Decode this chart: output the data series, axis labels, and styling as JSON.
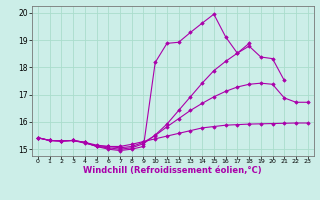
{
  "title": "",
  "xlabel": "Windchill (Refroidissement éolien,°C)",
  "ylabel": "",
  "background_color": "#cceee8",
  "grid_color": "#aaddcc",
  "line_color": "#aa00aa",
  "xlim": [
    -0.5,
    23.5
  ],
  "ylim": [
    14.75,
    20.25
  ],
  "yticks": [
    15,
    16,
    17,
    18,
    19,
    20
  ],
  "xticks": [
    0,
    1,
    2,
    3,
    4,
    5,
    6,
    7,
    8,
    9,
    10,
    11,
    12,
    13,
    14,
    15,
    16,
    17,
    18,
    19,
    20,
    21,
    22,
    23
  ],
  "series": [
    [
      15.42,
      15.32,
      15.3,
      15.32,
      15.22,
      15.12,
      15.1,
      15.1,
      15.18,
      15.28,
      15.38,
      15.48,
      15.58,
      15.68,
      15.78,
      15.83,
      15.88,
      15.9,
      15.92,
      15.93,
      15.94,
      15.95,
      15.96,
      15.96
    ],
    [
      15.42,
      15.32,
      15.3,
      15.32,
      15.25,
      15.15,
      15.1,
      15.05,
      15.1,
      15.25,
      15.5,
      15.82,
      16.12,
      16.42,
      16.68,
      16.92,
      17.12,
      17.28,
      17.38,
      17.42,
      17.38,
      16.88,
      16.72,
      16.72
    ],
    [
      15.42,
      15.32,
      15.3,
      15.32,
      15.25,
      15.1,
      15.05,
      15.0,
      15.05,
      15.2,
      15.52,
      15.92,
      16.42,
      16.92,
      17.42,
      17.88,
      18.22,
      18.52,
      18.78,
      18.38,
      18.32,
      17.52,
      null,
      null
    ],
    [
      15.42,
      15.32,
      15.3,
      15.32,
      15.25,
      15.1,
      15.0,
      14.95,
      15.0,
      15.1,
      18.18,
      18.88,
      18.92,
      19.28,
      19.62,
      19.95,
      19.12,
      18.52,
      18.88,
      null,
      null,
      null,
      null,
      null
    ]
  ]
}
